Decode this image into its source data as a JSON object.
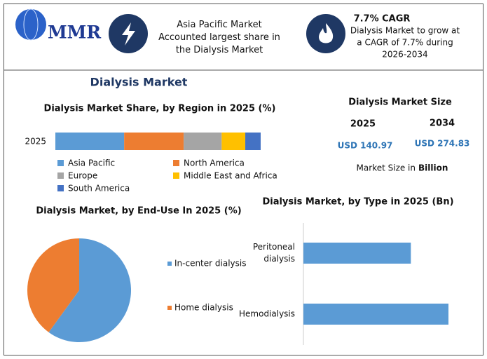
{
  "header": {
    "logo": "MMR",
    "highlight_1": "Asia Pacific Market Accounted largest share in the Dialysis Market",
    "highlight_2": {
      "title": "7.7% CAGR",
      "text": "Dialysis Market to grow at a CAGR of 7.7% during 2026-2034"
    }
  },
  "title": "Dialysis Market",
  "market_size": {
    "title": "Dialysis Market Size",
    "years": [
      "2025",
      "2034"
    ],
    "values": [
      "USD 140.97",
      "USD 274.83"
    ],
    "note": "Market Size in",
    "unit": "Billion"
  },
  "chart_data": [
    {
      "type": "stacked-bar",
      "title": "Dialysis Market Share, by Region in 2025 (%)",
      "categories": [
        "2025"
      ],
      "legend": "bottom",
      "series": [
        {
          "name": "Asia Pacific",
          "color": "#5b9bd5",
          "values": [
            33.5
          ]
        },
        {
          "name": "North America",
          "color": "#ed7d31",
          "values": [
            29
          ]
        },
        {
          "name": "Europe",
          "color": "#a5a5a5",
          "values": [
            18.5
          ]
        },
        {
          "name": "Middle East and Africa",
          "color": "#ffc000",
          "values": [
            11.5
          ]
        },
        {
          "name": "South America",
          "color": "#4472c4",
          "values": [
            7.5
          ]
        }
      ]
    },
    {
      "type": "pie",
      "title": "Dialysis Market, by End-Use In 2025 (%)",
      "legend": "right",
      "categories": [
        "In-center dialysis",
        "Home dialysis"
      ],
      "values": [
        60,
        40
      ],
      "colors": [
        "#5b9bd5",
        "#ed7d31"
      ]
    },
    {
      "type": "hbar",
      "title": "Dialysis Market, by Type in 2025 (Bn)",
      "color": "#5b9bd5",
      "categories": [
        "Peritoneal dialysis",
        "Hemodialysis"
      ],
      "values": [
        60,
        81
      ]
    }
  ]
}
